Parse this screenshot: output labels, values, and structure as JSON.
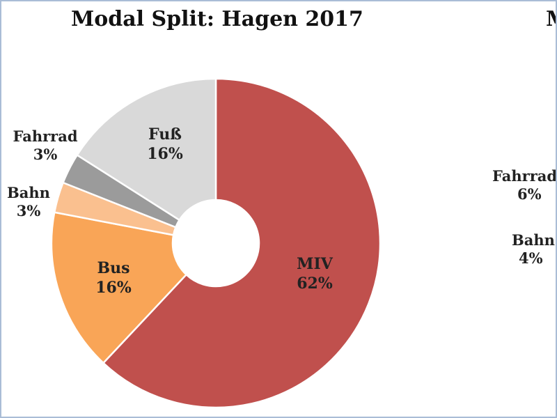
{
  "chart_data": [
    {
      "type": "pie",
      "title": "Modal Split: Hagen 2017",
      "donut": true,
      "categories": [
        "MIV",
        "Bus",
        "Bahn",
        "Fahrrad",
        "Fuß"
      ],
      "values": [
        62,
        16,
        3,
        3,
        16
      ],
      "labels": [
        "62%",
        "16%",
        "3%",
        "3%",
        "16%"
      ],
      "colors": [
        "#c0504d",
        "#f9a557",
        "#fac08f",
        "#9b9b9b",
        "#d9d9d9"
      ]
    },
    {
      "type": "pie",
      "title": "M",
      "partially_visible": true,
      "categories": [
        "Fahrrad",
        "Bahn"
      ],
      "values": [
        6,
        4
      ],
      "labels": [
        "6%",
        "4%"
      ]
    }
  ]
}
